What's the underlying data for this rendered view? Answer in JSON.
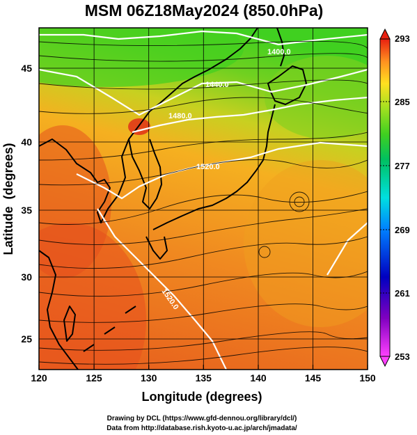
{
  "title": "MSM 06Z18May2024 (850.0hPa)",
  "xlabel": "Longitude (degrees)",
  "ylabel": "Latitude  (degrees)",
  "xticks": [
    "120",
    "125",
    "130",
    "135",
    "140",
    "145",
    "150"
  ],
  "yticks": [
    "25",
    "30",
    "35",
    "40",
    "45"
  ],
  "colorbar": {
    "labels": [
      "293",
      "285",
      "277",
      "269",
      "261",
      "253"
    ],
    "min": 253,
    "max": 293
  },
  "contour_labels": [
    "1400.0",
    "1440.0",
    "1480.0",
    "1520.0",
    "1520.0"
  ],
  "credits": {
    "line1": "Drawing by DCL (https://www.gfd-dennou.org/library/dcl/)",
    "line2": "Data from http://database.rish.kyoto-u.ac.jp/arch/jmadata/"
  },
  "map": {
    "lon_range": [
      120,
      150
    ],
    "lat_range": [
      22.5,
      47.5
    ],
    "grid": true
  },
  "colors": {
    "warm": "#e8501e",
    "mid": "#f5a020",
    "cool": "#50c020",
    "coast": "#000000",
    "contour": "#ffffff"
  }
}
